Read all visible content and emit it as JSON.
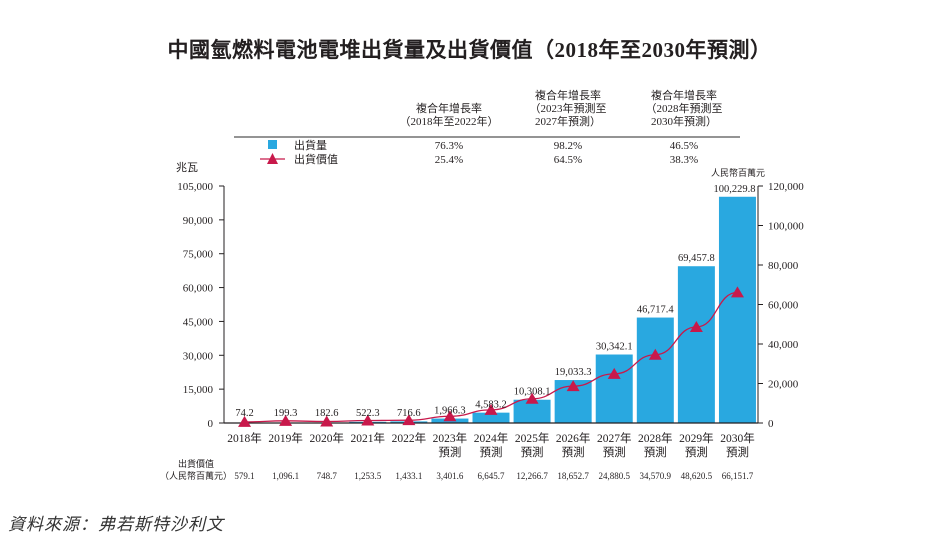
{
  "title": "中國氫燃料電池電堆出貨量及出貨價值（2018年至2030年預測）",
  "source": "資料來源：弗若斯特沙利文",
  "colors": {
    "bar": "#29a8e0",
    "line": "#c8194b",
    "axis": "#231f20",
    "text": "#231f20"
  },
  "cagr_table": {
    "headers": [
      [
        "複合年增長率",
        "（2018年至2022年）"
      ],
      [
        "複合年增長率",
        "（2023年預測至",
        "2027年預測）"
      ],
      [
        "複合年增長率",
        "（2028年預測至",
        "2030年預測）"
      ]
    ],
    "rows": [
      {
        "label": "出貨量",
        "icon": "square-legend-icon",
        "values": [
          "76.3%",
          "98.2%",
          "46.5%"
        ]
      },
      {
        "label": "出貨價值",
        "icon": "triangle-line-legend-icon",
        "values": [
          "25.4%",
          "64.5%",
          "38.3%"
        ]
      }
    ]
  },
  "value_row": {
    "label_line1": "出貨價值",
    "label_line2": "（人民幣百萬元）",
    "values": [
      "579.1",
      "1,096.1",
      "748.7",
      "1,253.5",
      "1,433.1",
      "3,401.6",
      "6,645.7",
      "12,266.7",
      "18,652.7",
      "24,880.5",
      "34,570.9",
      "48,620.5",
      "66,151.7"
    ]
  },
  "chart_data": {
    "type": "bar",
    "title": "中國氫燃料電池電堆出貨量及出貨價值（2018年至2030年預測）",
    "categories": [
      [
        "2018年"
      ],
      [
        "2019年"
      ],
      [
        "2020年"
      ],
      [
        "2021年"
      ],
      [
        "2022年"
      ],
      [
        "2023年",
        "預測"
      ],
      [
        "2024年",
        "預測"
      ],
      [
        "2025年",
        "預測"
      ],
      [
        "2026年",
        "預測"
      ],
      [
        "2027年",
        "預測"
      ],
      [
        "2028年",
        "預測"
      ],
      [
        "2029年",
        "預測"
      ],
      [
        "2030年",
        "預測"
      ]
    ],
    "series": [
      {
        "name": "出貨量",
        "type": "bar",
        "axis": "left",
        "values": [
          74.2,
          199.3,
          182.6,
          522.3,
          716.6,
          1966.3,
          4583.2,
          10308.1,
          19033.3,
          30342.1,
          46717.4,
          69457.8,
          100229.8
        ],
        "labels": [
          "74.2",
          "199.3",
          "182.6",
          "522.3",
          "716.6",
          "1,966.3",
          "4,583.2",
          "10,308.1",
          "19,033.3",
          "30,342.1",
          "46,717.4",
          "69,457.8",
          "100,229.8"
        ]
      },
      {
        "name": "出貨價值",
        "type": "line",
        "axis": "right",
        "values": [
          579.1,
          1096.1,
          748.7,
          1253.5,
          1433.1,
          3401.6,
          6645.7,
          12266.7,
          18652.7,
          24880.5,
          34570.9,
          48620.5,
          66151.7
        ]
      }
    ],
    "y_left": {
      "label": "兆瓦",
      "range": [
        0,
        105000
      ],
      "ticks": [
        0,
        15000,
        30000,
        45000,
        60000,
        75000,
        90000,
        105000
      ],
      "tick_labels": [
        "0",
        "15,000",
        "30,000",
        "45,000",
        "60,000",
        "75,000",
        "90,000",
        "105,000"
      ]
    },
    "y_right": {
      "label": "人民幣百萬元",
      "range": [
        0,
        120000
      ],
      "ticks": [
        0,
        20000,
        40000,
        60000,
        80000,
        100000,
        120000
      ],
      "tick_labels": [
        "0",
        "20,000",
        "40,000",
        "60,000",
        "80,000",
        "100,000",
        "120,000"
      ]
    },
    "grid": false,
    "legend": "top"
  }
}
